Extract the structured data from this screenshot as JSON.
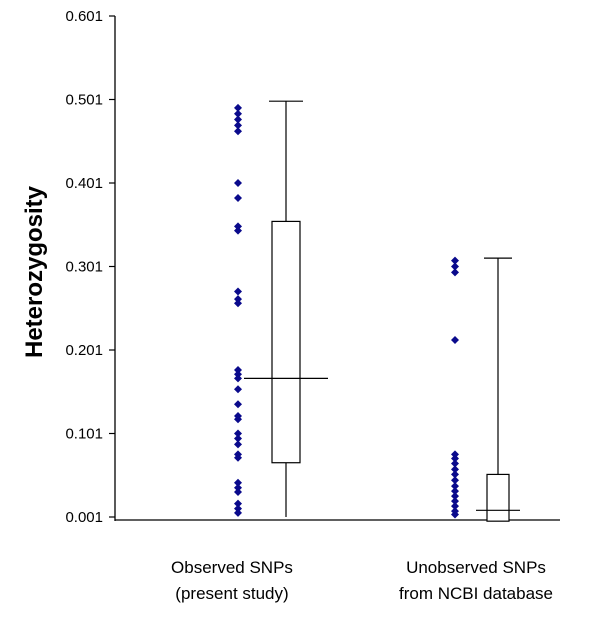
{
  "chart_data": {
    "type": "scatter",
    "subtype": "dot-plot-with-boxplots",
    "title": "",
    "ylabel": "Heterozygosity",
    "xlabel": "",
    "ylim": [
      0.001,
      0.601
    ],
    "yticks": [
      "0.601",
      "0.501",
      "0.401",
      "0.301",
      "0.201",
      "0.101",
      "0.001"
    ],
    "grid": false,
    "legend": "none",
    "point_color": "#0a0a8c",
    "categories": [
      {
        "label": [
          "Observed SNPs",
          "(present study)"
        ]
      },
      {
        "label": [
          "Unobserved SNPs",
          "from NCBI database"
        ]
      }
    ],
    "series": [
      {
        "category": 0,
        "points": [
          0.491,
          0.484,
          0.477,
          0.47,
          0.463,
          0.401,
          0.383,
          0.349,
          0.344,
          0.271,
          0.262,
          0.257,
          0.177,
          0.172,
          0.167,
          0.154,
          0.136,
          0.122,
          0.118,
          0.101,
          0.095,
          0.088,
          0.076,
          0.072,
          0.042,
          0.036,
          0.031,
          0.017,
          0.011,
          0.006
        ],
        "box": {
          "min": 0.001,
          "q1": 0.066,
          "median": 0.167,
          "q3": 0.355,
          "max": 0.499
        }
      },
      {
        "category": 1,
        "points": [
          0.308,
          0.301,
          0.294,
          0.213,
          0.076,
          0.071,
          0.065,
          0.058,
          0.052,
          0.045,
          0.038,
          0.032,
          0.026,
          0.02,
          0.014,
          0.008,
          0.004
        ],
        "box": {
          "min": -0.004,
          "q1": -0.004,
          "median": 0.009,
          "q3": 0.052,
          "max": 0.311
        }
      }
    ]
  }
}
